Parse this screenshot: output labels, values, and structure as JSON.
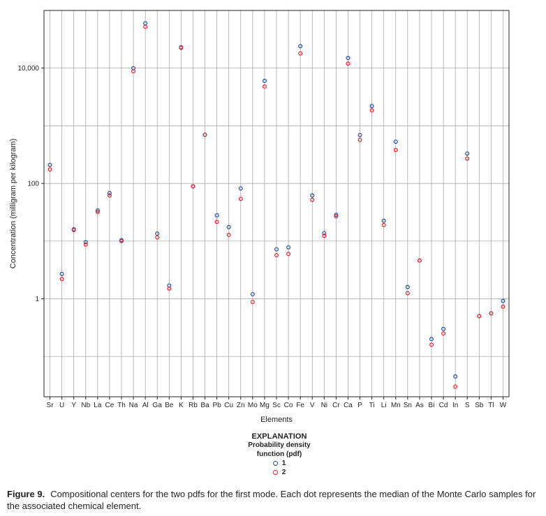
{
  "chart_data": {
    "type": "scatter",
    "xlabel": "Elements",
    "ylabel": "Concentration (milligram per kilogram)",
    "y_scale": "log",
    "ylim": [
      0.02,
      100000
    ],
    "y_ticks": [
      {
        "value": 1,
        "label": "1"
      },
      {
        "value": 100,
        "label": "100"
      },
      {
        "value": 10000,
        "label": "10,000"
      }
    ],
    "grid": true,
    "categories": [
      "Sr",
      "U",
      "Y",
      "Nb",
      "La",
      "Ce",
      "Th",
      "Na",
      "Al",
      "Ga",
      "Be",
      "K",
      "Rb",
      "Ba",
      "Pb",
      "Cu",
      "Zn",
      "Mo",
      "Mg",
      "Sc",
      "Co",
      "Fe",
      "V",
      "Ni",
      "Cr",
      "Ca",
      "P",
      "Ti",
      "Li",
      "Mn",
      "Sn",
      "As",
      "Bi",
      "Cd",
      "In",
      "S",
      "Sb",
      "Tl",
      "W"
    ],
    "series": [
      {
        "name": "1",
        "color": "#1f4e9c",
        "values": [
          210,
          2.7,
          16,
          9.6,
          34,
          68,
          10.4,
          10000,
          60000,
          13.5,
          1.7,
          23000,
          89,
          700,
          28,
          17.5,
          82,
          1.2,
          6000,
          7.2,
          7.8,
          24000,
          62,
          13.8,
          28.5,
          15000,
          690,
          2200,
          22.5,
          530,
          1.6,
          4.6,
          0.2,
          0.3,
          0.045,
          330,
          0.5,
          0.56,
          0.92
        ]
      },
      {
        "name": "2",
        "color": "#e8202a",
        "values": [
          175,
          2.2,
          15.5,
          8.7,
          32,
          62,
          10,
          8800,
          52000,
          11.6,
          1.5,
          22500,
          89,
          700,
          21.5,
          12.8,
          54,
          0.88,
          4800,
          5.7,
          6,
          18000,
          52,
          12.4,
          27,
          12000,
          570,
          1850,
          19,
          380,
          1.25,
          4.6,
          0.16,
          0.25,
          0.03,
          270,
          0.5,
          0.56,
          0.73
        ]
      }
    ],
    "legend": {
      "title": "EXPLANATION",
      "subtitle_lines": [
        "Probability density",
        "function (pdf)"
      ],
      "placement": "bottom-center"
    }
  },
  "caption": {
    "label": "Figure 9.",
    "text": "Compositional centers for the two pdfs for the first mode. Each dot represents the median of the Monte Carlo samples for the associated chemical element."
  }
}
